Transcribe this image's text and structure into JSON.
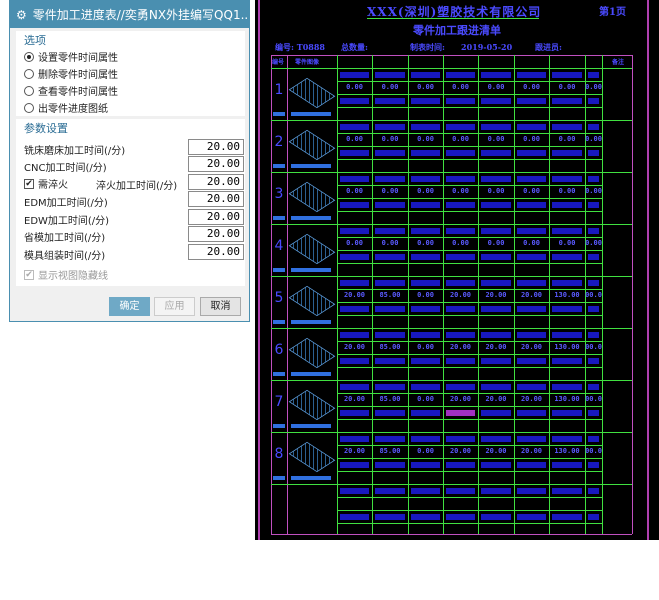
{
  "dialog": {
    "title": "零件加工进度表//奕勇NX外挂编写QQ1...",
    "icons": {
      "title": "gear-icon",
      "close": "close-icon"
    },
    "close_label": "✕",
    "options_group": {
      "title": "选项",
      "items": [
        {
          "label": "设置零件时间属性",
          "selected": true
        },
        {
          "label": "删除零件时间属性",
          "selected": false
        },
        {
          "label": "查看零件时间属性",
          "selected": false
        },
        {
          "label": "出零件进度图纸",
          "selected": false
        }
      ]
    },
    "params_group": {
      "title": "参数设置",
      "fields": [
        {
          "label": "铣床磨床加工时间(/分)",
          "value": "20.00"
        },
        {
          "label": "CNC加工时间(/分)",
          "value": "20.00"
        },
        {
          "label": "淬火加工时间(/分)",
          "value": "20.00"
        },
        {
          "label": "EDM加工时间(/分)",
          "value": "20.00"
        },
        {
          "label": "EDW加工时间(/分)",
          "value": "20.00"
        },
        {
          "label": "省模加工时间(/分)",
          "value": "20.00"
        },
        {
          "label": "模具组装时间(/分)",
          "value": "20.00"
        }
      ],
      "quench_checkbox": {
        "label": "需淬火",
        "checked": true
      },
      "hidden_lines_checkbox": {
        "label": "显示视图隐藏线",
        "checked": true,
        "disabled": true
      }
    },
    "buttons": {
      "ok": "确定",
      "apply": "应用",
      "cancel": "取消"
    },
    "accent": "#4a8fb0"
  },
  "drawing": {
    "company": "XXX(深圳)塑胶技术有限公司",
    "subtitle": "零件加工跟进清单",
    "page": "第1页",
    "info": {
      "code": "编号: T0888",
      "total": "总数量:",
      "made_time_label": "制表时间:",
      "date": "2019-05-20",
      "follower": "跟进员:"
    },
    "headers": {
      "no": "编号",
      "image": "零件图像",
      "remark": "备注"
    },
    "rows": [
      {
        "no": "1",
        "values": [
          "0.00",
          "0.00",
          "0.00",
          "0.00",
          "0.00",
          "0.00",
          "0.00",
          "0.00"
        ]
      },
      {
        "no": "2",
        "values": [
          "0.00",
          "0.00",
          "0.00",
          "0.00",
          "0.00",
          "0.00",
          "0.00",
          "0.00"
        ]
      },
      {
        "no": "3",
        "values": [
          "0.00",
          "0.00",
          "0.00",
          "0.00",
          "0.00",
          "0.00",
          "0.00",
          "0.00"
        ]
      },
      {
        "no": "4",
        "values": [
          "0.00",
          "0.00",
          "0.00",
          "0.00",
          "0.00",
          "0.00",
          "0.00",
          "0.00"
        ]
      },
      {
        "no": "5",
        "values": [
          "20.00",
          "85.00",
          "0.00",
          "20.00",
          "20.00",
          "20.00",
          "130.00",
          "00.0"
        ]
      },
      {
        "no": "6",
        "values": [
          "20.00",
          "85.00",
          "0.00",
          "20.00",
          "20.00",
          "20.00",
          "130.00",
          "00.0"
        ]
      },
      {
        "no": "7",
        "values": [
          "20.00",
          "85.00",
          "0.00",
          "20.00",
          "20.00",
          "20.00",
          "130.00",
          "00.0"
        ]
      },
      {
        "no": "8",
        "values": [
          "20.00",
          "85.00",
          "0.00",
          "20.00",
          "20.00",
          "20.00",
          "130.00",
          "00.0"
        ]
      }
    ],
    "colors": {
      "grid": "#40e040",
      "border": "#b040b0",
      "text": "#3a3af0",
      "background": "#000000"
    }
  }
}
